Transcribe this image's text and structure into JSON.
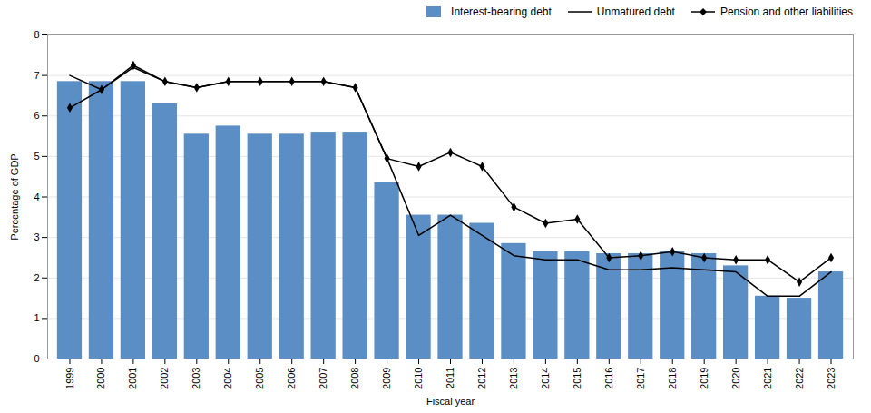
{
  "chart_data": {
    "type": "bar",
    "xlabel": "Fiscal year",
    "ylabel": "Percentage of GDP",
    "x": [
      1999,
      2000,
      2001,
      2002,
      2003,
      2004,
      2005,
      2006,
      2007,
      2008,
      2009,
      2010,
      2011,
      2012,
      2013,
      2014,
      2015,
      2016,
      2017,
      2018,
      2019,
      2020,
      2021,
      2022,
      2023
    ],
    "series": [
      {
        "name": "Interest-bearing debt",
        "type": "bar",
        "color": "#5b8ec4",
        "values": [
          6.85,
          6.85,
          6.85,
          6.3,
          5.55,
          5.75,
          5.55,
          5.55,
          5.6,
          5.6,
          4.35,
          3.55,
          3.55,
          3.35,
          2.85,
          2.65,
          2.65,
          2.6,
          2.6,
          2.65,
          2.6,
          2.3,
          1.55,
          1.5,
          2.15
        ]
      },
      {
        "name": "Unmatured debt",
        "type": "line",
        "color": "#000000",
        "values": [
          7.0,
          6.65,
          7.2,
          6.85,
          6.7,
          6.85,
          6.85,
          6.85,
          6.85,
          6.7,
          4.95,
          3.05,
          3.55,
          3.05,
          2.55,
          2.45,
          2.45,
          2.2,
          2.2,
          2.25,
          2.2,
          2.15,
          1.55,
          1.55,
          2.15
        ]
      },
      {
        "name": "Pension and other liabilities",
        "type": "line",
        "color": "#000000",
        "marker": "diamond",
        "values": [
          6.2,
          6.65,
          7.25,
          6.85,
          6.7,
          6.85,
          6.85,
          6.85,
          6.85,
          6.7,
          4.95,
          4.75,
          5.1,
          4.75,
          3.75,
          3.35,
          3.45,
          2.5,
          2.55,
          2.65,
          2.5,
          2.45,
          2.45,
          1.9,
          2.5
        ]
      }
    ],
    "xlim": [
      1998.3,
      2023.7
    ],
    "xticks": [
      1999,
      2000,
      2001,
      2002,
      2003,
      2004,
      2005,
      2006,
      2007,
      2008,
      2009,
      2010,
      2011,
      2012,
      2013,
      2014,
      2015,
      2016,
      2017,
      2018,
      2019,
      2020,
      2021,
      2022,
      2023
    ],
    "ylim": [
      0,
      8
    ],
    "yticks": [
      0,
      1,
      2,
      3,
      4,
      5,
      6,
      7,
      8
    ],
    "grid": true,
    "legend": "upper right"
  }
}
